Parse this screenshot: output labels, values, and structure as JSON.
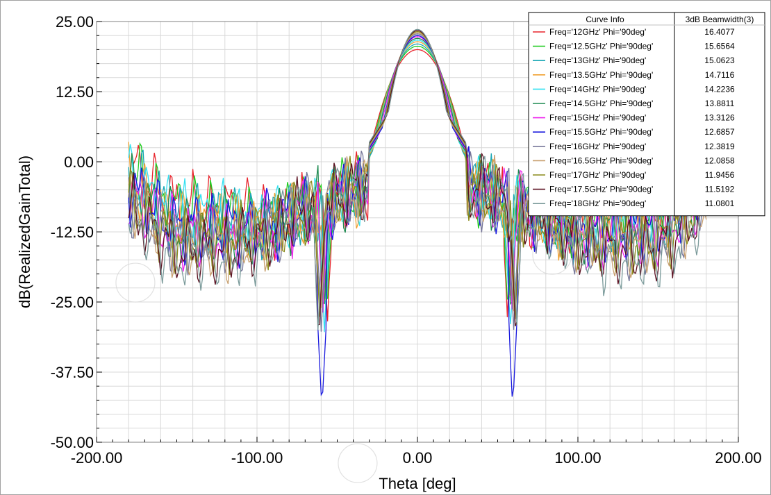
{
  "chart_data": {
    "type": "line",
    "xlabel": "Theta [deg]",
    "ylabel": "dB(RealizedGainTotal)",
    "xlim": [
      -200,
      200
    ],
    "ylim": [
      -50,
      25
    ],
    "x_ticks": [
      "-200.00",
      "-100.00",
      "0.00",
      "100.00",
      "200.00"
    ],
    "y_ticks": [
      "25.00",
      "12.50",
      "0.00",
      "-12.50",
      "-25.00",
      "-37.50",
      "-50.00"
    ],
    "grid": true,
    "legend_position": "top-right",
    "legend_headers": [
      "Curve Info",
      "3dB Beamwidth(3)"
    ],
    "theta_range": [
      -180,
      180
    ],
    "series": [
      {
        "name": "Freq='12GHz' Phi='90deg'",
        "beamwidth": "16.4077",
        "color": "#e8242c",
        "peak": 20.0,
        "null": -28,
        "floor": -14
      },
      {
        "name": "Freq='12.5GHz' Phi='90deg'",
        "beamwidth": "15.6564",
        "color": "#22cc22",
        "peak": 20.6,
        "null": -27,
        "floor": -15
      },
      {
        "name": "Freq='13GHz' Phi='90deg'",
        "beamwidth": "15.0623",
        "color": "#1aa7b5",
        "peak": 21.0,
        "null": -26,
        "floor": -16
      },
      {
        "name": "Freq='13.5GHz' Phi='90deg'",
        "beamwidth": "14.7116",
        "color": "#f0a030",
        "peak": 21.4,
        "null": -27,
        "floor": -17
      },
      {
        "name": "Freq='14GHz' Phi='90deg'",
        "beamwidth": "14.2236",
        "color": "#33e0f0",
        "peak": 21.7,
        "null": -30,
        "floor": -16
      },
      {
        "name": "Freq='14.5GHz' Phi='90deg'",
        "beamwidth": "13.8811",
        "color": "#1d8a50",
        "peak": 22.0,
        "null": -28,
        "floor": -18
      },
      {
        "name": "Freq='15GHz' Phi='90deg'",
        "beamwidth": "13.3126",
        "color": "#ee22ee",
        "peak": 22.3,
        "null": -27,
        "floor": -19
      },
      {
        "name": "Freq='15.5GHz' Phi='90deg'",
        "beamwidth": "12.6857",
        "color": "#1818dd",
        "peak": 22.5,
        "null": -44,
        "floor": -18
      },
      {
        "name": "Freq='16GHz' Phi='90deg'",
        "beamwidth": "12.3819",
        "color": "#777799",
        "peak": 22.8,
        "null": -30,
        "floor": -20
      },
      {
        "name": "Freq='16.5GHz' Phi='90deg'",
        "beamwidth": "12.0858",
        "color": "#c8a070",
        "peak": 23.0,
        "null": -29,
        "floor": -21
      },
      {
        "name": "Freq='17GHz' Phi='90deg'",
        "beamwidth": "11.9456",
        "color": "#8a8a1a",
        "peak": 23.2,
        "null": -28,
        "floor": -20
      },
      {
        "name": "Freq='17.5GHz' Phi='90deg'",
        "beamwidth": "11.5192",
        "color": "#5a1020",
        "peak": 23.4,
        "null": -32,
        "floor": -22
      },
      {
        "name": "Freq='18GHz' Phi='90deg'",
        "beamwidth": "11.0801",
        "color": "#7a9a9a",
        "peak": 23.6,
        "null": -29,
        "floor": -23
      }
    ]
  }
}
